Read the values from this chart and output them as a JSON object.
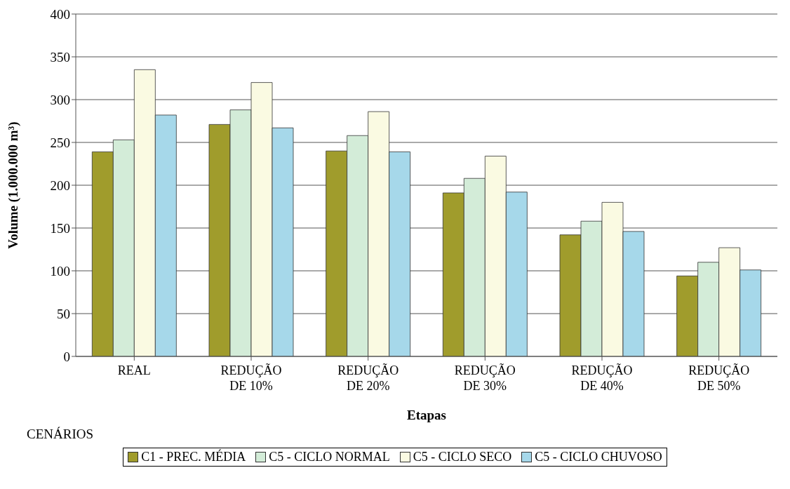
{
  "chart_data": {
    "type": "bar",
    "xlabel": "Etapas",
    "ylabel": "Volume (1.000.000 m³)",
    "legend_title": "CENÁRIOS",
    "categories": [
      "REAL",
      "REDUÇÃO DE 10%",
      "REDUÇÃO DE 20%",
      "REDUÇÃO DE 30%",
      "REDUÇÃO DE 40%",
      "REDUÇÃO DE 50%"
    ],
    "series": [
      {
        "name": "C1 - PREC. MÉDIA",
        "color": "#a09c2c",
        "values": [
          239,
          271,
          240,
          191,
          142,
          94
        ]
      },
      {
        "name": "C5 - CICLO NORMAL",
        "color": "#d3ecd8",
        "values": [
          253,
          288,
          258,
          208,
          158,
          110
        ]
      },
      {
        "name": "C5 - CICLO SECO",
        "color": "#fafae2",
        "values": [
          335,
          320,
          286,
          234,
          180,
          127
        ]
      },
      {
        "name": "C5 - CICLO CHUVOSO",
        "color": "#a6d8ea",
        "values": [
          282,
          267,
          239,
          192,
          146,
          101
        ]
      }
    ],
    "ylim": [
      0,
      400
    ],
    "yticks": [
      0,
      50,
      100,
      150,
      200,
      250,
      300,
      350,
      400
    ],
    "grid": "y",
    "legend": "bottom"
  }
}
